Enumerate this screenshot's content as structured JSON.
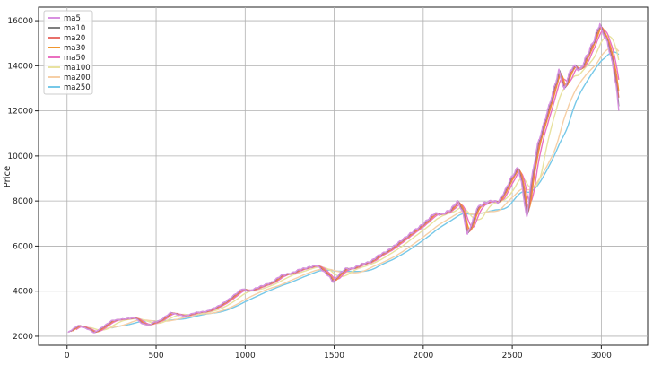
{
  "chart_data": {
    "type": "line",
    "title": "",
    "xlabel": "",
    "ylabel": "Price",
    "xlim": [
      -160,
      3260
    ],
    "ylim": [
      1600,
      16600
    ],
    "xticks": [
      0,
      500,
      1000,
      1500,
      2000,
      2500,
      3000
    ],
    "yticks": [
      2000,
      4000,
      6000,
      8000,
      10000,
      12000,
      14000,
      16000
    ],
    "grid": true,
    "legend_position": "top-left",
    "series": [
      {
        "name": "ma5",
        "color": "#d890e0",
        "window": 5
      },
      {
        "name": "ma10",
        "color": "#7f7f7f",
        "window": 10
      },
      {
        "name": "ma20",
        "color": "#e8706a",
        "window": 20
      },
      {
        "name": "ma30",
        "color": "#f0962e",
        "window": 30
      },
      {
        "name": "ma50",
        "color": "#ea6fc0",
        "window": 50
      },
      {
        "name": "ma100",
        "color": "#e8e2a0",
        "window": 100
      },
      {
        "name": "ma200",
        "color": "#f6cfa6",
        "window": 200
      },
      {
        "name": "ma250",
        "color": "#76c8e8",
        "window": 250
      }
    ],
    "price_anchors": {
      "x": [
        0,
        60,
        120,
        150,
        250,
        300,
        380,
        420,
        460,
        480,
        520,
        580,
        620,
        660,
        720,
        780,
        850,
        900,
        980,
        1020,
        1080,
        1150,
        1200,
        1260,
        1300,
        1400,
        1470,
        1490,
        1520,
        1560,
        1600,
        1650,
        1700,
        1750,
        1800,
        1850,
        1900,
        2000,
        2060,
        2100,
        2150,
        2190,
        2220,
        2245,
        2270,
        2300,
        2340,
        2380,
        2420,
        2460,
        2490,
        2530,
        2550,
        2580,
        2600,
        2640,
        2700,
        2760,
        2790,
        2810,
        2840,
        2880,
        2920,
        2960,
        2990,
        3000,
        3020,
        3050,
        3080,
        3100
      ],
      "y": [
        2150,
        2480,
        2300,
        2150,
        2700,
        2750,
        2820,
        2550,
        2500,
        2600,
        2700,
        3050,
        2950,
        2900,
        3050,
        3100,
        3350,
        3600,
        4100,
        4000,
        4200,
        4400,
        4700,
        4800,
        4950,
        5150,
        4650,
        4400,
        4700,
        5000,
        5000,
        5200,
        5300,
        5600,
        5800,
        6100,
        6400,
        7000,
        7450,
        7400,
        7600,
        8000,
        7500,
        6500,
        7000,
        7700,
        7900,
        8000,
        7950,
        8500,
        9000,
        9500,
        8800,
        7200,
        8700,
        10500,
        12100,
        13800,
        12900,
        13500,
        14000,
        13800,
        14500,
        15200,
        15900,
        15500,
        15300,
        14500,
        13200,
        11700
      ]
    },
    "n_days": 3100
  }
}
